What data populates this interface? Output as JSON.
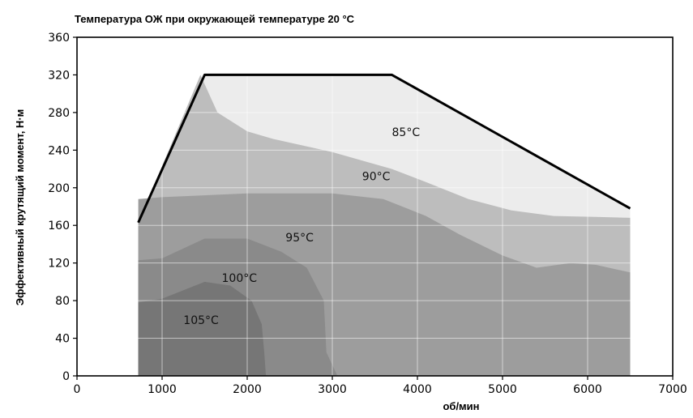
{
  "chart_data": {
    "type": "area",
    "title": "Температура ОЖ при окружающей температуре 20 °C",
    "xlabel": "об/мин",
    "ylabel": "Эффективный крутящий момент, Н·м",
    "xlim": [
      0,
      7000
    ],
    "ylim": [
      0,
      360
    ],
    "x_ticks": [
      0,
      1000,
      2000,
      3000,
      4000,
      5000,
      6000,
      7000
    ],
    "y_ticks": [
      0,
      40,
      80,
      120,
      160,
      200,
      240,
      280,
      320,
      360
    ],
    "grid": true,
    "envelope": {
      "x": [
        720,
        1500,
        3700,
        6500
      ],
      "y": [
        163,
        320,
        320,
        178
      ]
    },
    "regions": [
      {
        "label": "85°C",
        "color": "#ececec",
        "label_at": [
          3700,
          255
        ],
        "x": [
          720,
          1500,
          3700,
          6500,
          6500,
          720
        ],
        "y": [
          163,
          320,
          320,
          178,
          0,
          0
        ]
      },
      {
        "label": "90°C",
        "color": "#bdbdbd",
        "label_at": [
          3350,
          208
        ],
        "x": [
          720,
          1450,
          1650,
          2000,
          2300,
          3000,
          3700,
          4100,
          4600,
          5100,
          5600,
          6100,
          6500,
          6500,
          720
        ],
        "y": [
          163,
          320,
          280,
          260,
          252,
          238,
          220,
          206,
          188,
          176,
          170,
          169,
          168,
          0,
          0
        ]
      },
      {
        "label": "95°C",
        "color": "#9d9d9d",
        "label_at": [
          2450,
          143
        ],
        "x": [
          720,
          1000,
          2000,
          3000,
          3600,
          4100,
          4500,
          5000,
          5400,
          5800,
          6100,
          6500,
          6500,
          720
        ],
        "y": [
          188,
          190,
          194,
          194,
          188,
          170,
          150,
          128,
          115,
          120,
          118,
          110,
          0,
          0
        ]
      },
      {
        "label": "100°C",
        "color": "#8a8a8a",
        "label_at": [
          1700,
          100
        ],
        "x": [
          720,
          1000,
          1500,
          2000,
          2400,
          2700,
          2900,
          2930,
          3060,
          720
        ],
        "y": [
          123,
          125,
          146,
          146,
          132,
          115,
          80,
          25,
          0,
          0
        ]
      },
      {
        "label": "105°C",
        "color": "#767676",
        "label_at": [
          1250,
          55
        ],
        "x": [
          720,
          1000,
          1500,
          1800,
          2050,
          2170,
          2200,
          2220,
          720
        ],
        "y": [
          78,
          82,
          100,
          96,
          80,
          55,
          25,
          0,
          0
        ]
      }
    ]
  }
}
